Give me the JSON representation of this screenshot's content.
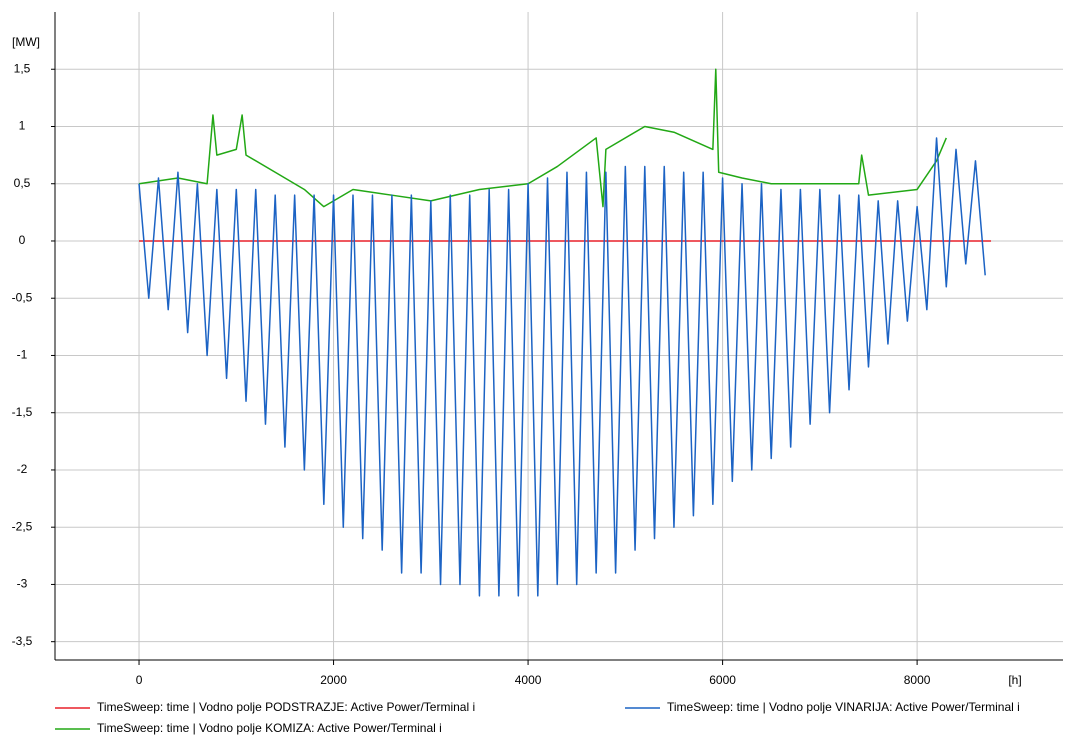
{
  "chart_data": {
    "type": "line",
    "x_label": "[h]",
    "y_label": "[MW]",
    "xlim": [
      -864,
      9500
    ],
    "ylim": [
      -3.66,
      2.0
    ],
    "xticks": [
      0,
      2000,
      4000,
      6000,
      8000
    ],
    "yticks": [
      {
        "value": 1.5,
        "label": "1,5"
      },
      1,
      {
        "value": 0.5,
        "label": "0,5"
      },
      0,
      {
        "value": -0.5,
        "label": "-0,5"
      },
      -1,
      {
        "value": -1.5,
        "label": "-1,5"
      },
      -2,
      {
        "value": -2.5,
        "label": "-2,5"
      },
      -3,
      {
        "value": -3.5,
        "label": "-3,5"
      }
    ],
    "grid": true,
    "series": [
      {
        "name": "TimeSweep: time | Vodno polje PODSTRAZJE: Active Power/Terminal i",
        "color": "#e8202a",
        "x": [
          0,
          8760
        ],
        "values": [
          0,
          0
        ]
      },
      {
        "name": "TimeSweep: time | Vodno polje KOMIZA: Active Power/Terminal i",
        "color": "#22a815",
        "x": [
          0,
          400,
          700,
          760,
          800,
          1000,
          1060,
          1100,
          1400,
          1700,
          1900,
          2200,
          2600,
          3000,
          3500,
          4000,
          4300,
          4700,
          4770,
          4800,
          5200,
          5500,
          5900,
          5930,
          5960,
          6200,
          6500,
          7000,
          7400,
          7430,
          7500,
          8000,
          8200,
          8300
        ],
        "values": [
          0.5,
          0.55,
          0.5,
          1.1,
          0.75,
          0.8,
          1.1,
          0.75,
          0.6,
          0.45,
          0.3,
          0.45,
          0.4,
          0.35,
          0.45,
          0.5,
          0.65,
          0.9,
          0.3,
          0.8,
          1.0,
          0.95,
          0.8,
          1.5,
          0.6,
          0.55,
          0.5,
          0.5,
          0.5,
          0.75,
          0.4,
          0.45,
          0.7,
          0.9
        ]
      },
      {
        "name": "TimeSweep: time | Vodno polje VINARIJA: Active Power/Terminal i",
        "color": "#1c63c4",
        "x": [
          0,
          100,
          200,
          300,
          400,
          500,
          600,
          700,
          800,
          900,
          1000,
          1100,
          1200,
          1300,
          1400,
          1500,
          1600,
          1700,
          1800,
          1900,
          2000,
          2100,
          2200,
          2300,
          2400,
          2500,
          2600,
          2700,
          2800,
          2900,
          3000,
          3100,
          3200,
          3300,
          3400,
          3500,
          3600,
          3700,
          3800,
          3900,
          4000,
          4100,
          4200,
          4300,
          4400,
          4500,
          4600,
          4700,
          4800,
          4900,
          5000,
          5100,
          5200,
          5300,
          5400,
          5500,
          5600,
          5700,
          5800,
          5900,
          6000,
          6100,
          6200,
          6300,
          6400,
          6500,
          6600,
          6700,
          6800,
          6900,
          7000,
          7100,
          7200,
          7300,
          7400,
          7500,
          7600,
          7700,
          7800,
          7900,
          8000,
          8100,
          8200,
          8300,
          8400,
          8500,
          8600,
          8700
        ],
        "values": [
          0.5,
          -0.5,
          0.55,
          -0.6,
          0.6,
          -0.8,
          0.5,
          -1.0,
          0.45,
          -1.2,
          0.45,
          -1.4,
          0.45,
          -1.6,
          0.4,
          -1.8,
          0.4,
          -2.0,
          0.4,
          -2.3,
          0.4,
          -2.5,
          0.4,
          -2.6,
          0.4,
          -2.7,
          0.4,
          -2.9,
          0.4,
          -2.9,
          0.35,
          -3.0,
          0.4,
          -3.0,
          0.4,
          -3.1,
          0.45,
          -3.1,
          0.45,
          -3.1,
          0.5,
          -3.1,
          0.55,
          -3.0,
          0.6,
          -3.0,
          0.6,
          -2.9,
          0.6,
          -2.9,
          0.65,
          -2.7,
          0.65,
          -2.6,
          0.65,
          -2.5,
          0.6,
          -2.4,
          0.6,
          -2.3,
          0.55,
          -2.1,
          0.5,
          -2.0,
          0.5,
          -1.9,
          0.45,
          -1.8,
          0.45,
          -1.6,
          0.45,
          -1.5,
          0.4,
          -1.3,
          0.4,
          -1.1,
          0.35,
          -0.9,
          0.35,
          -0.7,
          0.3,
          -0.6,
          0.9,
          -0.4,
          0.8,
          -0.2,
          0.7,
          -0.3
        ]
      }
    ]
  }
}
